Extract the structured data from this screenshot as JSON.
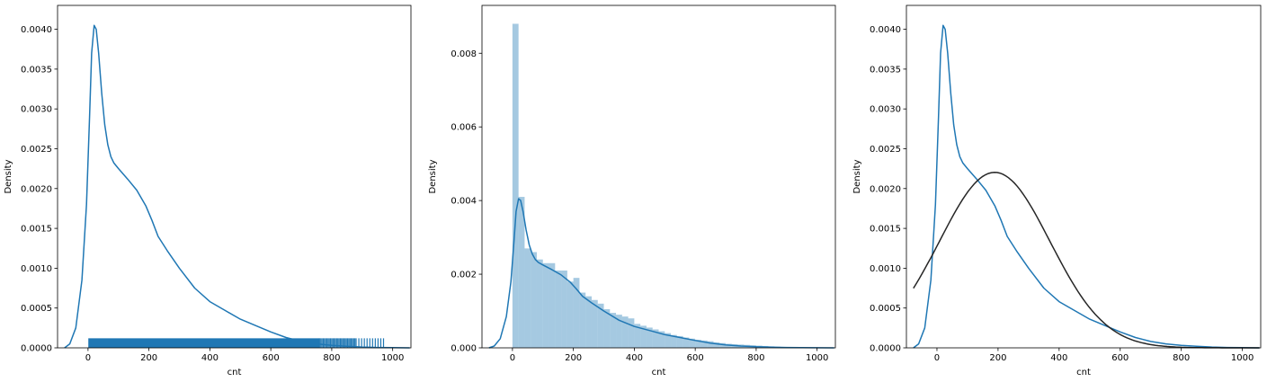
{
  "chart_data": [
    {
      "type": "line",
      "subtype": "kde-with-rug",
      "xlabel": "cnt",
      "ylabel": "Density",
      "xlim": [
        -100,
        1060
      ],
      "ylim": [
        0,
        0.0043
      ],
      "xticks": [
        0,
        200,
        400,
        600,
        800,
        1000
      ],
      "yticks": [
        0.0,
        0.0005,
        0.001,
        0.0015,
        0.002,
        0.0025,
        0.003,
        0.0035,
        0.004
      ],
      "ytick_labels": [
        "0.0000",
        "0.0005",
        "0.0010",
        "0.0015",
        "0.0020",
        "0.0025",
        "0.0030",
        "0.0035",
        "0.0040"
      ],
      "grid": false,
      "series": [
        {
          "kind": "kde",
          "color": "#1f77b4",
          "x": [
            -77,
            -60,
            -40,
            -20,
            -5,
            5,
            12,
            20,
            27,
            35,
            45,
            55,
            65,
            75,
            85,
            100,
            130,
            160,
            190,
            210,
            230,
            260,
            300,
            350,
            400,
            450,
            500,
            550,
            600,
            650,
            700,
            750,
            800,
            850,
            900,
            950,
            1000,
            1056
          ],
          "y": [
            0.0,
            5e-05,
            0.00025,
            0.00085,
            0.0018,
            0.0029,
            0.0037,
            0.00405,
            0.004,
            0.0037,
            0.0032,
            0.0028,
            0.00255,
            0.0024,
            0.00232,
            0.00225,
            0.00212,
            0.00198,
            0.00178,
            0.0016,
            0.0014,
            0.00122,
            0.001,
            0.00075,
            0.00058,
            0.00047,
            0.00036,
            0.00028,
            0.0002,
            0.00013,
            8e-05,
            5e-05,
            3e-05,
            2e-05,
            1e-05,
            5e-06,
            2e-06,
            0.0
          ]
        },
        {
          "kind": "rug",
          "color": "#1f77b4",
          "x_min": 1,
          "x_max": 977,
          "height": 0.00012
        }
      ]
    },
    {
      "type": "bar",
      "subtype": "histogram-with-kde",
      "xlabel": "cnt",
      "ylabel": "Density",
      "xlim": [
        -100,
        1060
      ],
      "ylim": [
        0,
        0.0093
      ],
      "xticks": [
        0,
        200,
        400,
        600,
        800,
        1000
      ],
      "yticks": [
        0.0,
        0.002,
        0.004,
        0.006,
        0.008
      ],
      "ytick_labels": [
        "0.000",
        "0.002",
        "0.004",
        "0.006",
        "0.008"
      ],
      "grid": false,
      "hist_color": "#1f77b4",
      "hist_alpha": 0.4,
      "bin_width": 20,
      "bin_start": 0,
      "hist_values": [
        0.0088,
        0.0041,
        0.0027,
        0.0026,
        0.0024,
        0.0023,
        0.0023,
        0.0021,
        0.0021,
        0.0018,
        0.0019,
        0.0015,
        0.0014,
        0.0013,
        0.0012,
        0.00105,
        0.00095,
        0.0009,
        0.00085,
        0.0008,
        0.00065,
        0.0006,
        0.00055,
        0.0005,
        0.00045,
        0.0004,
        0.00035,
        0.00032,
        0.00028,
        0.00025,
        0.00022,
        0.0002,
        0.00018,
        0.00015,
        0.00013,
        0.00011,
        0.0001,
        9e-05,
        8e-05,
        7e-05,
        6e-05,
        5e-05,
        4e-05,
        3e-05,
        2e-05,
        2e-05,
        1e-05,
        1e-05,
        1e-05
      ],
      "series": [
        {
          "kind": "kde",
          "color": "#1f77b4",
          "x": [
            -77,
            -60,
            -40,
            -20,
            -5,
            5,
            12,
            20,
            27,
            35,
            45,
            55,
            65,
            75,
            85,
            100,
            130,
            160,
            190,
            210,
            230,
            260,
            300,
            350,
            400,
            450,
            500,
            550,
            600,
            650,
            700,
            750,
            800,
            850,
            900,
            950,
            1000,
            1056
          ],
          "y": [
            0.0,
            5e-05,
            0.00025,
            0.00085,
            0.0018,
            0.0029,
            0.0037,
            0.00405,
            0.004,
            0.0037,
            0.0032,
            0.0028,
            0.00255,
            0.0024,
            0.00232,
            0.00225,
            0.00212,
            0.00198,
            0.00178,
            0.0016,
            0.0014,
            0.00122,
            0.001,
            0.00075,
            0.00058,
            0.00047,
            0.00036,
            0.00028,
            0.0002,
            0.00013,
            8e-05,
            5e-05,
            3e-05,
            2e-05,
            1e-05,
            5e-06,
            2e-06,
            0.0
          ]
        }
      ]
    },
    {
      "type": "line",
      "subtype": "kde-with-normal-fit",
      "xlabel": "cnt",
      "ylabel": "Density",
      "xlim": [
        -100,
        1060
      ],
      "ylim": [
        0,
        0.0043
      ],
      "xticks": [
        0,
        200,
        400,
        600,
        800,
        1000
      ],
      "yticks": [
        0.0,
        0.0005,
        0.001,
        0.0015,
        0.002,
        0.0025,
        0.003,
        0.0035,
        0.004
      ],
      "ytick_labels": [
        "0.0000",
        "0.0005",
        "0.0010",
        "0.0015",
        "0.0020",
        "0.0025",
        "0.0030",
        "0.0035",
        "0.0040"
      ],
      "grid": false,
      "series": [
        {
          "kind": "kde",
          "color": "#1f77b4",
          "x": [
            -77,
            -60,
            -40,
            -20,
            -5,
            5,
            12,
            20,
            27,
            35,
            45,
            55,
            65,
            75,
            85,
            100,
            130,
            160,
            190,
            210,
            230,
            260,
            300,
            350,
            400,
            450,
            500,
            550,
            600,
            650,
            700,
            750,
            800,
            850,
            900,
            950,
            1000,
            1056
          ],
          "y": [
            0.0,
            5e-05,
            0.00025,
            0.00085,
            0.0018,
            0.0029,
            0.0037,
            0.00405,
            0.004,
            0.0037,
            0.0032,
            0.0028,
            0.00255,
            0.0024,
            0.00232,
            0.00225,
            0.00212,
            0.00198,
            0.00178,
            0.0016,
            0.0014,
            0.00122,
            0.001,
            0.00075,
            0.00058,
            0.00047,
            0.00036,
            0.00028,
            0.0002,
            0.00013,
            8e-05,
            5e-05,
            3e-05,
            2e-05,
            1e-05,
            5e-06,
            2e-06,
            0.0
          ]
        },
        {
          "kind": "normal",
          "color": "#262626",
          "mean": 189,
          "std": 181,
          "x_range": [
            -77,
            1056
          ]
        }
      ]
    }
  ]
}
